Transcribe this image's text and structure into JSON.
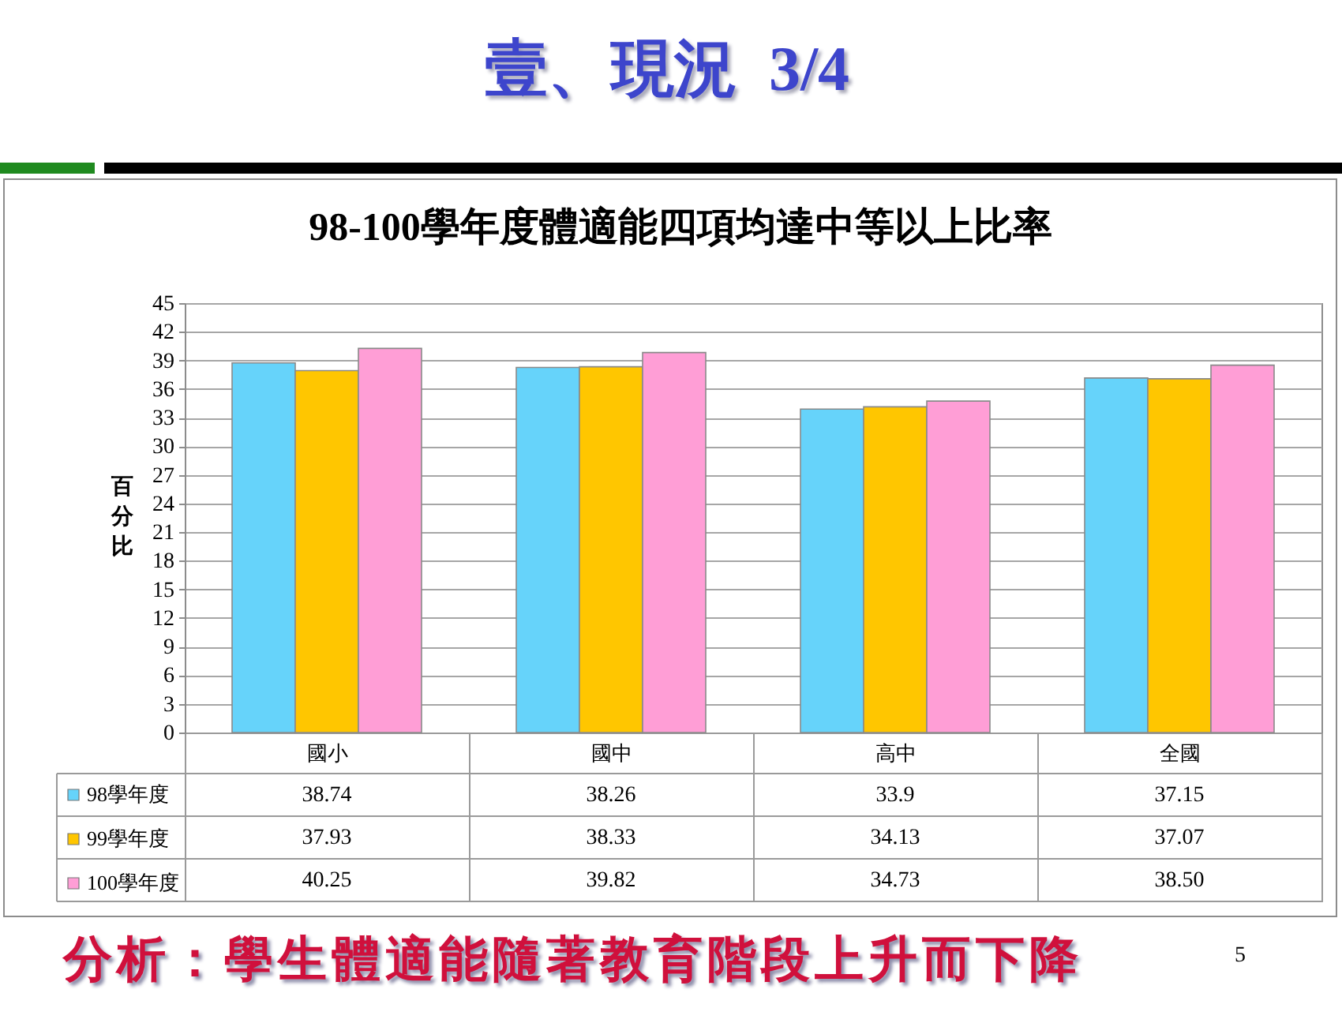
{
  "chart_data": {
    "type": "bar",
    "title": "壹、現況  3/4",
    "subtitle": "98-100學年度體適能四項均達中等以上比率",
    "ylabel": "百分比",
    "categories": [
      "國小",
      "國中",
      "高中",
      "全國"
    ],
    "series": [
      {
        "name": "98學年度",
        "color": "#66d3fa",
        "values": [
          38.74,
          38.26,
          33.9,
          37.15
        ],
        "value_labels": [
          "38.74",
          "38.26",
          "33.9",
          "37.15"
        ]
      },
      {
        "name": "99學年度",
        "color": "#ffc600",
        "values": [
          37.93,
          38.33,
          34.13,
          37.07
        ],
        "value_labels": [
          "37.93",
          "38.33",
          "34.13",
          "37.07"
        ]
      },
      {
        "name": "100學年度",
        "color": "#ff9ed6",
        "values": [
          40.25,
          39.82,
          34.73,
          38.5
        ],
        "value_labels": [
          "40.25",
          "39.82",
          "34.73",
          "38.50"
        ]
      }
    ],
    "ylim": [
      0,
      45
    ],
    "yticks": [
      0,
      3,
      6,
      9,
      12,
      15,
      18,
      21,
      24,
      27,
      30,
      33,
      36,
      39,
      42,
      45
    ],
    "grid": "y",
    "legend": "bottom left",
    "annotations": [
      "分析：學生體適能隨著教育階段上升而下降",
      "5"
    ]
  }
}
